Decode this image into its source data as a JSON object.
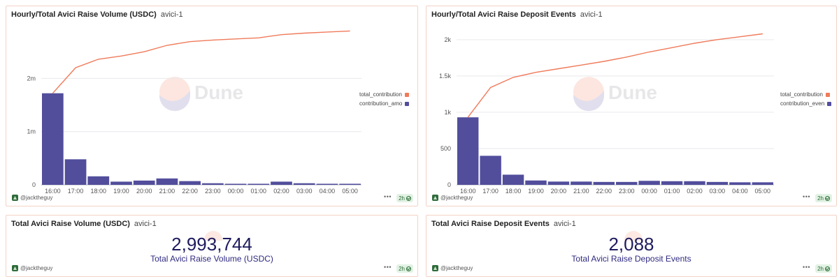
{
  "colors": {
    "line": "#f07a5a",
    "bar": "#524e9c",
    "grid": "#e9e9ee",
    "axis": "#555555"
  },
  "watermark": {
    "text": "Dune"
  },
  "panels": {
    "volume_chart": {
      "title": "Hourly/Total Avici Raise Volume (USDC)",
      "subtitle": "avici-1",
      "author": "@jacktheguy",
      "refresh": "2h",
      "dots": "•••",
      "legend": [
        {
          "label": "total_contribution",
          "color": "#f07a5a"
        },
        {
          "label": "contribution_amo",
          "color": "#524e9c"
        }
      ]
    },
    "events_chart": {
      "title": "Hourly/Total Avici Raise Deposit Events",
      "subtitle": "avici-1",
      "author": "@jacktheguy",
      "refresh": "2h",
      "dots": "•••",
      "legend": [
        {
          "label": "total_contribution",
          "color": "#f07a5a"
        },
        {
          "label": "contribution_even",
          "color": "#524e9c"
        }
      ]
    },
    "volume_counter": {
      "title": "Total Avici Raise Volume (USDC)",
      "subtitle": "avici-1",
      "value": "2,993,744",
      "caption": "Total Avici Raise Volume (USDC)",
      "author": "@jacktheguy",
      "refresh": "2h",
      "dots": "•••"
    },
    "events_counter": {
      "title": "Total Avici Raise Deposit Events",
      "subtitle": "avici-1",
      "value": "2,088",
      "caption": "Total Avici Raise Deposit Events",
      "author": "@jacktheguy",
      "refresh": "2h",
      "dots": "•••"
    }
  },
  "chart_data": [
    {
      "type": "bar",
      "title": "Hourly/Total Avici Raise Volume (USDC)",
      "categories": [
        "16:00",
        "17:00",
        "18:00",
        "19:00",
        "20:00",
        "21:00",
        "22:00",
        "23:00",
        "00:00",
        "01:00",
        "02:00",
        "03:00",
        "04:00",
        "05:00"
      ],
      "yticks": [
        0,
        1000000,
        2000000
      ],
      "ytick_labels": [
        "0",
        "1m",
        "2m"
      ],
      "ylim": [
        0,
        3000000
      ],
      "grid": true,
      "legend_position": "right",
      "series": [
        {
          "name": "total_contribution",
          "kind": "line",
          "values": [
            1720000,
            2200000,
            2360000,
            2420000,
            2500000,
            2620000,
            2690000,
            2720000,
            2740000,
            2760000,
            2820000,
            2850000,
            2870000,
            2890000
          ]
        },
        {
          "name": "contribution_amo",
          "kind": "bar",
          "values": [
            1720000,
            480000,
            160000,
            60000,
            80000,
            120000,
            70000,
            30000,
            20000,
            20000,
            60000,
            30000,
            20000,
            20000
          ]
        }
      ]
    },
    {
      "type": "bar",
      "title": "Hourly/Total Avici Raise Deposit Events",
      "categories": [
        "16:00",
        "17:00",
        "18:00",
        "19:00",
        "20:00",
        "21:00",
        "22:00",
        "23:00",
        "00:00",
        "01:00",
        "02:00",
        "03:00",
        "04:00",
        "05:00"
      ],
      "yticks": [
        0,
        500,
        1000,
        1500,
        2000
      ],
      "ytick_labels": [
        "0",
        "500",
        "1k",
        "1.5k",
        "2k"
      ],
      "ylim": [
        0,
        2200
      ],
      "grid": true,
      "legend_position": "right",
      "series": [
        {
          "name": "total_contribution",
          "kind": "line",
          "values": [
            930,
            1340,
            1480,
            1550,
            1600,
            1650,
            1700,
            1760,
            1830,
            1890,
            1950,
            2000,
            2040,
            2080
          ]
        },
        {
          "name": "contribution_even",
          "kind": "bar",
          "values": [
            930,
            400,
            140,
            60,
            45,
            45,
            40,
            40,
            55,
            50,
            50,
            40,
            35,
            35
          ]
        }
      ]
    }
  ]
}
